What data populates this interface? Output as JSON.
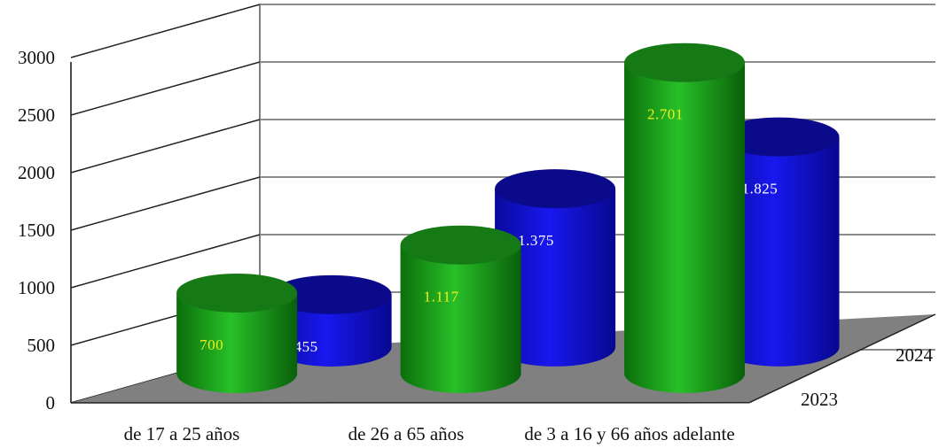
{
  "chart_data": {
    "type": "bar",
    "style": "3d-cylinder",
    "categories": [
      "de 17 a 25 años",
      "de 26 a 65 años",
      "de 3 a 16 y 66 años adelante"
    ],
    "series": [
      {
        "name": "2023",
        "values": [
          700,
          1117,
          2701
        ],
        "labels": [
          "700",
          "1.117",
          "2.701"
        ],
        "color": "#1fa31f",
        "label_color": "#f2ef1a"
      },
      {
        "name": "2024",
        "values": [
          455,
          1375,
          1825
        ],
        "labels": [
          "455",
          "1.375",
          "1.825"
        ],
        "color": "#1212e6",
        "label_color": "#ffffff"
      }
    ],
    "yticks": [
      "0",
      "500",
      "1000",
      "1500",
      "2000",
      "2500",
      "3000"
    ],
    "ylim": [
      0,
      3000
    ],
    "grid": true,
    "floor_color": "#808080"
  }
}
